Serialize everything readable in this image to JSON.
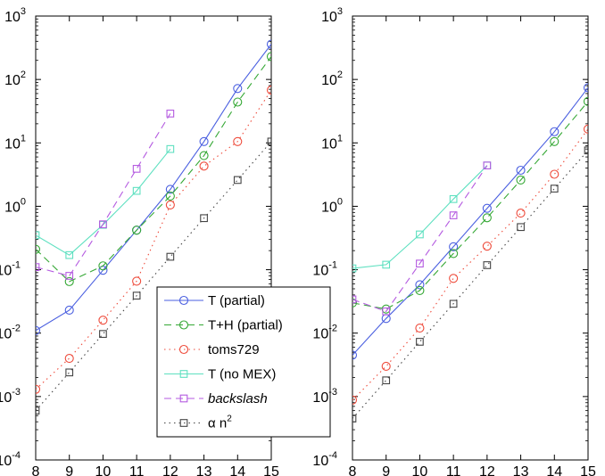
{
  "chart_data": [
    {
      "type": "line",
      "scale": {
        "y": "log"
      },
      "xlim": [
        8,
        15
      ],
      "ylim": [
        0.0001,
        1000
      ],
      "x_ticks": [
        "8",
        "9",
        "10",
        "11",
        "12",
        "13",
        "14",
        "15"
      ],
      "y_ticks": [
        {
          "base": "10",
          "exp": "-4"
        },
        {
          "base": "10",
          "exp": "-3"
        },
        {
          "base": "10",
          "exp": "-2"
        },
        {
          "base": "10",
          "exp": "-1"
        },
        {
          "base": "10",
          "exp": "0"
        },
        {
          "base": "10",
          "exp": "1"
        },
        {
          "base": "10",
          "exp": "2"
        },
        {
          "base": "10",
          "exp": "3"
        }
      ],
      "grid": false,
      "legend": {
        "location": "bottom-right",
        "entries": [
          {
            "label": "T (partial)"
          },
          {
            "label": "T+H (partial)"
          },
          {
            "label": "toms729"
          },
          {
            "label": "T (no MEX)"
          },
          {
            "label": "backslash",
            "italic": true
          },
          {
            "label": "α n",
            "superscript": "2"
          }
        ]
      },
      "series": [
        {
          "name": "T (partial)",
          "color": "#4a5fe0",
          "line": "solid",
          "marker": "circle",
          "x": [
            8,
            9,
            10,
            11,
            12,
            13,
            14,
            15
          ],
          "values": [
            0.011,
            0.023,
            0.098,
            0.42,
            1.85,
            10.5,
            72,
            360
          ]
        },
        {
          "name": "T+H (partial)",
          "color": "#35a835",
          "line": "dashed",
          "marker": "circle",
          "x": [
            8,
            9,
            10,
            11,
            12,
            13,
            14,
            15
          ],
          "values": [
            0.21,
            0.065,
            0.115,
            0.42,
            1.45,
            6.3,
            44,
            230
          ]
        },
        {
          "name": "toms729",
          "color": "#ee4a3a",
          "line": "dotted",
          "marker": "circle",
          "x": [
            8,
            9,
            10,
            11,
            12,
            13,
            14,
            15
          ],
          "values": [
            0.0013,
            0.004,
            0.016,
            0.066,
            1.05,
            4.3,
            10.5,
            68
          ]
        },
        {
          "name": "T (no MEX)",
          "color": "#5ee0c0",
          "line": "solid",
          "marker": "square",
          "x": [
            8,
            9,
            10,
            11,
            12
          ],
          "values": [
            0.35,
            0.17,
            0.51,
            1.75,
            8.0
          ]
        },
        {
          "name": "backslash",
          "color": "#b45ae0",
          "line": "dashed",
          "marker": "square",
          "x": [
            8,
            9,
            10,
            11,
            12
          ],
          "values": [
            0.11,
            0.08,
            0.52,
            3.9,
            29
          ]
        },
        {
          "name": "α n2",
          "color": "#444444",
          "line": "dotted",
          "marker": "square",
          "x": [
            8,
            9,
            10,
            11,
            12,
            13,
            14,
            15
          ],
          "values": [
            0.0006,
            0.0024,
            0.0097,
            0.039,
            0.16,
            0.65,
            2.6,
            10.5
          ]
        }
      ]
    },
    {
      "type": "line",
      "scale": {
        "y": "log"
      },
      "xlim": [
        8,
        15
      ],
      "ylim": [
        0.0001,
        1000
      ],
      "x_ticks": [
        "8",
        "9",
        "10",
        "11",
        "12",
        "13",
        "14",
        "15"
      ],
      "y_ticks": [
        {
          "base": "10",
          "exp": "-4"
        },
        {
          "base": "10",
          "exp": "-3"
        },
        {
          "base": "10",
          "exp": "-2"
        },
        {
          "base": "10",
          "exp": "-1"
        },
        {
          "base": "10",
          "exp": "0"
        },
        {
          "base": "10",
          "exp": "1"
        },
        {
          "base": "10",
          "exp": "2"
        },
        {
          "base": "10",
          "exp": "3"
        }
      ],
      "grid": false,
      "series": [
        {
          "name": "T (partial)",
          "color": "#4a5fe0",
          "line": "solid",
          "marker": "circle",
          "x": [
            8,
            9,
            10,
            11,
            12,
            13,
            14,
            15
          ],
          "values": [
            0.0045,
            0.017,
            0.058,
            0.23,
            0.93,
            3.7,
            15,
            74
          ]
        },
        {
          "name": "T+H (partial)",
          "color": "#35a835",
          "line": "dashed",
          "marker": "circle",
          "x": [
            8,
            9,
            10,
            11,
            12,
            13,
            14,
            15
          ],
          "values": [
            0.03,
            0.024,
            0.047,
            0.18,
            0.66,
            2.6,
            10.5,
            45
          ]
        },
        {
          "name": "toms729",
          "color": "#ee4a3a",
          "line": "dotted",
          "marker": "circle",
          "x": [
            8,
            9,
            10,
            11,
            12,
            13,
            14,
            15
          ],
          "values": [
            0.00088,
            0.003,
            0.012,
            0.073,
            0.235,
            0.78,
            3.2,
            16.5
          ]
        },
        {
          "name": "T (no MEX)",
          "color": "#5ee0c0",
          "line": "solid",
          "marker": "square",
          "x": [
            8,
            9,
            10,
            11,
            12
          ],
          "values": [
            0.105,
            0.12,
            0.36,
            1.3,
            4.4
          ]
        },
        {
          "name": "backslash",
          "color": "#b45ae0",
          "line": "dashed",
          "marker": "square",
          "x": [
            8,
            9,
            10,
            11,
            12
          ],
          "values": [
            0.034,
            0.022,
            0.125,
            0.72,
            4.4
          ]
        },
        {
          "name": "α n2",
          "color": "#444444",
          "line": "dotted",
          "marker": "square",
          "x": [
            8,
            9,
            10,
            11,
            12,
            13,
            14,
            15
          ],
          "values": [
            0.00045,
            0.0018,
            0.0073,
            0.029,
            0.118,
            0.47,
            1.9,
            7.6
          ]
        }
      ]
    }
  ]
}
